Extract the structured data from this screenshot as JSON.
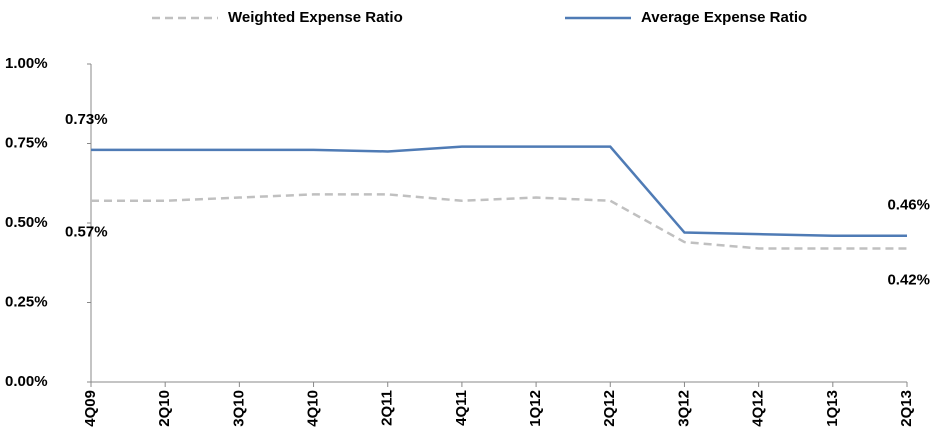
{
  "chart_data": {
    "type": "line",
    "categories": [
      "4Q09",
      "2Q10",
      "3Q10",
      "4Q10",
      "2Q11",
      "4Q11",
      "1Q12",
      "2Q12",
      "3Q12",
      "4Q12",
      "1Q13",
      "2Q13"
    ],
    "series": [
      {
        "name": "Weighted Expense Ratio",
        "color": "#c0c0c0",
        "dashed": true,
        "values": [
          0.57,
          0.57,
          0.58,
          0.59,
          0.59,
          0.57,
          0.58,
          0.57,
          0.44,
          0.42,
          0.42,
          0.42
        ],
        "value_labels": [
          "0.57%",
          null,
          null,
          null,
          null,
          null,
          null,
          null,
          null,
          null,
          null,
          "0.42%"
        ]
      },
      {
        "name": "Average Expense Ratio",
        "color": "#4f7bb5",
        "dashed": false,
        "values": [
          0.73,
          0.73,
          0.73,
          0.73,
          0.725,
          0.74,
          0.74,
          0.74,
          0.47,
          0.465,
          0.46,
          0.46
        ],
        "value_labels": [
          "0.73%",
          null,
          null,
          null,
          null,
          null,
          null,
          null,
          null,
          null,
          null,
          "0.46%"
        ]
      }
    ],
    "ylim": [
      0,
      1
    ],
    "yticks": [
      {
        "value": 0,
        "label": "0.00%"
      },
      {
        "value": 0.25,
        "label": "0.25%"
      },
      {
        "value": 0.5,
        "label": "0.50%"
      },
      {
        "value": 0.75,
        "label": "0.75%"
      },
      {
        "value": 1,
        "label": "1.00%"
      }
    ],
    "grid": false
  }
}
